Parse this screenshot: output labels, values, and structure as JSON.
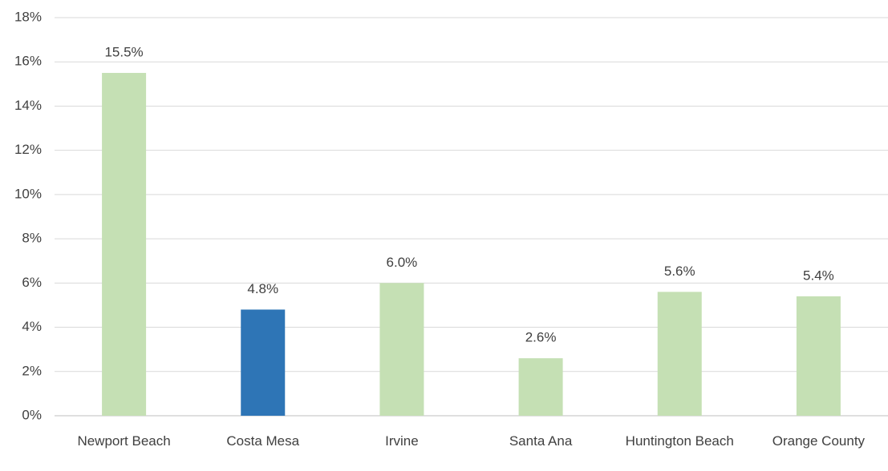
{
  "chart_data": {
    "type": "bar",
    "categories": [
      "Newport Beach",
      "Costa Mesa",
      "Irvine",
      "Santa Ana",
      "Huntington Beach",
      "Orange County"
    ],
    "values": [
      15.5,
      4.8,
      6.0,
      2.6,
      5.6,
      5.4
    ],
    "value_labels": [
      "15.5%",
      "4.8%",
      "6.0%",
      "2.6%",
      "5.6%",
      "5.4%"
    ],
    "colors": [
      "#c5e0b4",
      "#2e75b6",
      "#c5e0b4",
      "#c5e0b4",
      "#c5e0b4",
      "#c5e0b4"
    ],
    "ylim": [
      0,
      18
    ],
    "yticks": [
      {
        "value": 0,
        "label": "0%"
      },
      {
        "value": 2,
        "label": "2%"
      },
      {
        "value": 4,
        "label": "4%"
      },
      {
        "value": 6,
        "label": "6%"
      },
      {
        "value": 8,
        "label": "8%"
      },
      {
        "value": 10,
        "label": "10%"
      },
      {
        "value": 12,
        "label": "12%"
      },
      {
        "value": 14,
        "label": "14%"
      },
      {
        "value": 16,
        "label": "16%"
      },
      {
        "value": 18,
        "label": "18%"
      }
    ],
    "grid": true
  }
}
